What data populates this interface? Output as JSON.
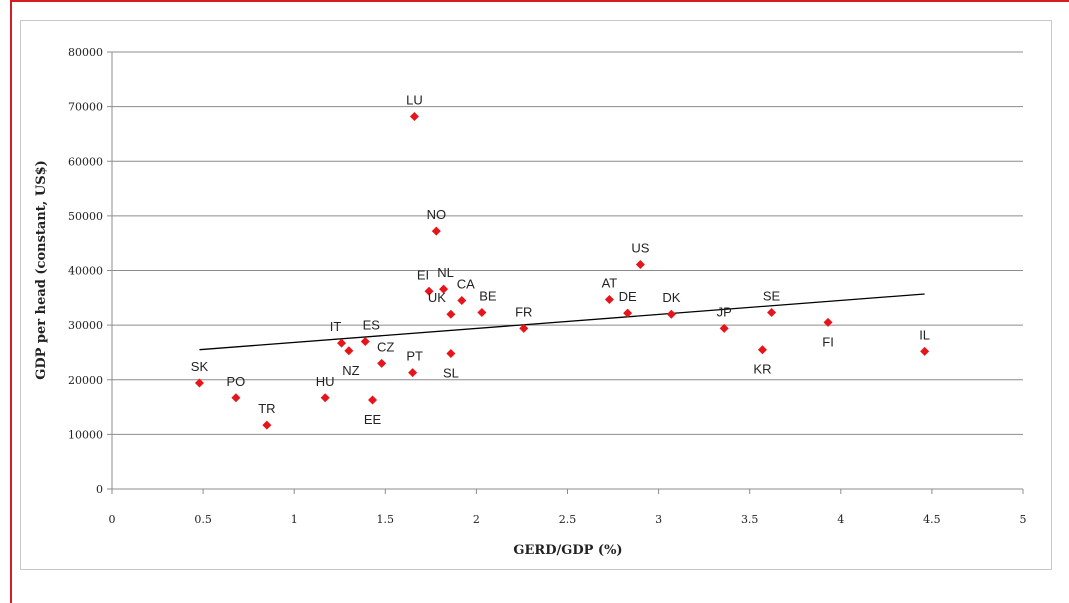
{
  "colors": {
    "frame": "#d21f26",
    "point": "#e8141b",
    "grid": "#8c8c8c",
    "trend": "#000000"
  },
  "chart_data": {
    "type": "scatter",
    "xlabel": "GERD/GDP (%)",
    "ylabel": "GDP per head (constant, US$)",
    "xlim": [
      0,
      5
    ],
    "ylim": [
      0,
      80000
    ],
    "x_ticks": [
      "0",
      "0.5",
      "1",
      "1.5",
      "2",
      "2.5",
      "3",
      "3.5",
      "4",
      "4.5",
      "5"
    ],
    "y_ticks": [
      "0",
      "10000",
      "20000",
      "30000",
      "40000",
      "50000",
      "60000",
      "70000",
      "80000"
    ],
    "grid": "horizontal",
    "points": [
      {
        "label": "SK",
        "x": 0.48,
        "y": 19400
      },
      {
        "label": "PO",
        "x": 0.68,
        "y": 16700
      },
      {
        "label": "TR",
        "x": 0.85,
        "y": 11700
      },
      {
        "label": "HU",
        "x": 1.17,
        "y": 16700
      },
      {
        "label": "IT",
        "x": 1.26,
        "y": 26700
      },
      {
        "label": "NZ",
        "x": 1.3,
        "y": 25300
      },
      {
        "label": "ES",
        "x": 1.39,
        "y": 27000
      },
      {
        "label": "EE",
        "x": 1.43,
        "y": 16300
      },
      {
        "label": "CZ",
        "x": 1.48,
        "y": 23000
      },
      {
        "label": "PT",
        "x": 1.65,
        "y": 21300
      },
      {
        "label": "LU",
        "x": 1.66,
        "y": 68200
      },
      {
        "label": "EI",
        "x": 1.74,
        "y": 36200
      },
      {
        "label": "NO",
        "x": 1.78,
        "y": 47200
      },
      {
        "label": "NL",
        "x": 1.82,
        "y": 36600
      },
      {
        "label": "UK",
        "x": 1.86,
        "y": 32000
      },
      {
        "label": "SL",
        "x": 1.86,
        "y": 24800
      },
      {
        "label": "CA",
        "x": 1.92,
        "y": 34500
      },
      {
        "label": "BE",
        "x": 2.03,
        "y": 32300
      },
      {
        "label": "FR",
        "x": 2.26,
        "y": 29400
      },
      {
        "label": "AT",
        "x": 2.73,
        "y": 34700
      },
      {
        "label": "DE",
        "x": 2.83,
        "y": 32200
      },
      {
        "label": "US",
        "x": 2.9,
        "y": 41100
      },
      {
        "label": "DK",
        "x": 3.07,
        "y": 32000
      },
      {
        "label": "JP",
        "x": 3.36,
        "y": 29400
      },
      {
        "label": "KR",
        "x": 3.57,
        "y": 25500
      },
      {
        "label": "SE",
        "x": 3.62,
        "y": 32300
      },
      {
        "label": "FI",
        "x": 3.93,
        "y": 30500
      },
      {
        "label": "IL",
        "x": 4.46,
        "y": 25200
      }
    ],
    "trendline": {
      "x": [
        0.48,
        4.46
      ],
      "y": [
        25500,
        35700
      ]
    }
  }
}
